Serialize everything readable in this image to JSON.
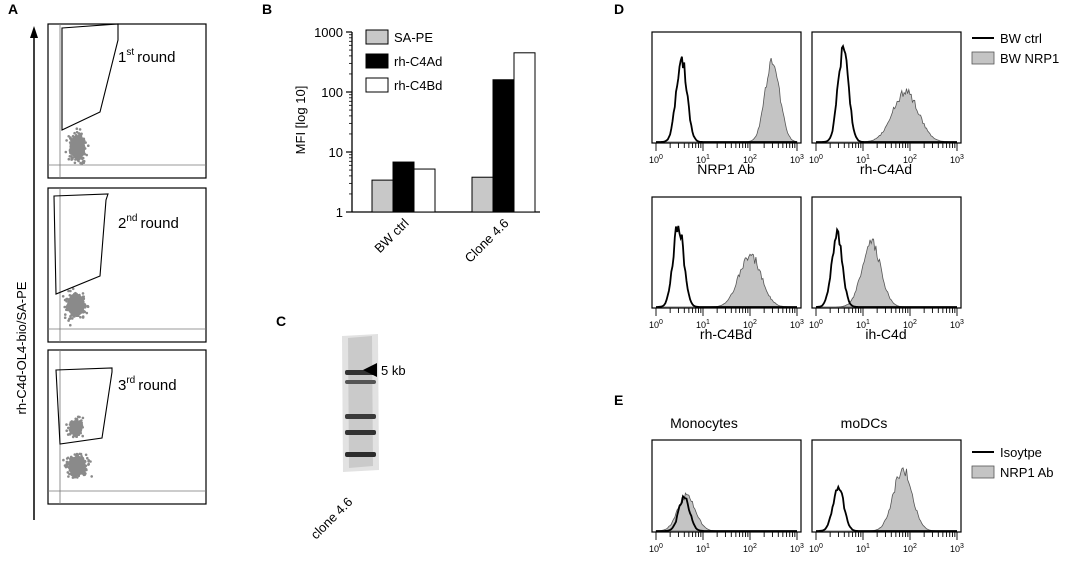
{
  "panels": {
    "A": {
      "label": "A",
      "y_axis_label": "rh-C4d-OL4-bio/SA-PE",
      "rounds": [
        {
          "num": "1",
          "sup": "st",
          "word": "round"
        },
        {
          "num": "2",
          "sup": "nd",
          "word": "round"
        },
        {
          "num": "3",
          "sup": "rd",
          "word": "round"
        }
      ]
    },
    "B": {
      "label": "B"
    },
    "C": {
      "label": "C",
      "marker_label": "5 kb",
      "lane_label": "clone 4.6",
      "band_sizes_kb": [
        5
      ]
    },
    "D": {
      "label": "D"
    },
    "E": {
      "label": "E"
    }
  },
  "chart_data": [
    {
      "panel": "B",
      "type": "bar",
      "categories": [
        "BW ctrl",
        "Clone 4.6"
      ],
      "series": [
        {
          "name": "SA-PE",
          "color": "#c8c8c8",
          "values": [
            3.4,
            3.8
          ]
        },
        {
          "name": "rh-C4Ad",
          "color": "#000000",
          "values": [
            6.8,
            160
          ]
        },
        {
          "name": "rh-C4Bd",
          "color": "#ffffff",
          "values": [
            5.2,
            450
          ]
        }
      ],
      "ylabel": "MFI [log 10]",
      "yscale": "log",
      "ylim": [
        1,
        1000
      ],
      "yticks": [
        "1",
        "10",
        "100",
        "1000"
      ],
      "legend": "top-left"
    },
    {
      "panel": "D",
      "type": "area",
      "xscale": "log",
      "xlim": [
        1,
        1000
      ],
      "legend": [
        "BW ctrl",
        "BW NRP1"
      ],
      "legend_placement": "right",
      "subplots": [
        {
          "title": "NRP1 Ab",
          "ctrl_peak_x": 3.5,
          "ctrl_peak_h": 0.8,
          "stain_peak_x": 300,
          "stain_peak_h": 0.78,
          "stain_width": 0.22
        },
        {
          "title": "rh-C4Ad",
          "ctrl_peak_x": 3.8,
          "ctrl_peak_h": 0.88,
          "stain_peak_x": 80,
          "stain_peak_h": 0.48,
          "stain_width": 0.38
        },
        {
          "title": "rh-C4Bd",
          "ctrl_peak_x": 3.0,
          "ctrl_peak_h": 0.78,
          "stain_peak_x": 100,
          "stain_peak_h": 0.5,
          "stain_width": 0.33
        },
        {
          "title": "ih-C4d",
          "ctrl_peak_x": 2.8,
          "ctrl_peak_h": 0.68,
          "stain_peak_x": 15,
          "stain_peak_h": 0.62,
          "stain_width": 0.28
        }
      ]
    },
    {
      "panel": "E",
      "type": "area",
      "xscale": "log",
      "xlim": [
        1,
        1000
      ],
      "legend": [
        "Isoytpe",
        "NRP1 Ab"
      ],
      "legend_placement": "right",
      "subplots": [
        {
          "title": "Monocytes",
          "ctrl_peak_x": 4.0,
          "ctrl_peak_h": 0.4,
          "stain_peak_x": 4.5,
          "stain_peak_h": 0.42,
          "stain_width": 0.26
        },
        {
          "title": "moDCs",
          "ctrl_peak_x": 3.0,
          "ctrl_peak_h": 0.52,
          "stain_peak_x": 70,
          "stain_peak_h": 0.72,
          "stain_width": 0.28
        }
      ]
    }
  ]
}
